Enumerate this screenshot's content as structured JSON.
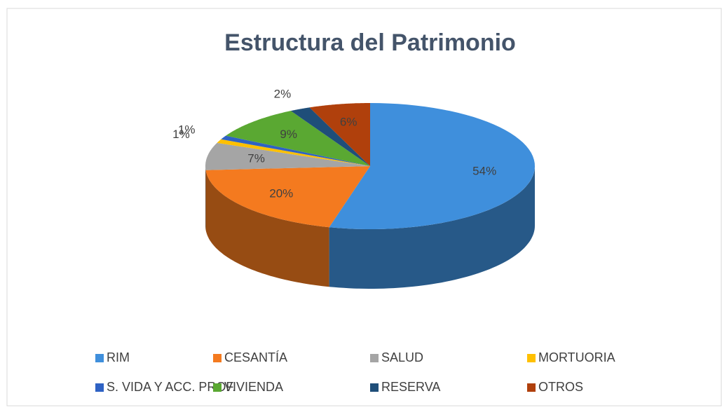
{
  "chart_data": {
    "type": "pie",
    "title": "Estructura del Patrimonio",
    "categories": [
      "RIM",
      "CESANTÍA",
      "SALUD",
      "MORTUORIA",
      "S. VIDA Y ACC. PROF.",
      "VIVIENDA",
      "RESERVA",
      "OTROS"
    ],
    "values": [
      54,
      20,
      7,
      1,
      1,
      9,
      2,
      6
    ],
    "value_labels": [
      "54%",
      "20%",
      "7%",
      "1%",
      "1%",
      "9%",
      "2%",
      "6%"
    ],
    "colors": [
      "#3f8fdc",
      "#f47a1f",
      "#a5a5a5",
      "#ffc000",
      "#2e62c4",
      "#5aa832",
      "#1f4e79",
      "#b0400c"
    ],
    "legend": "bottom"
  }
}
